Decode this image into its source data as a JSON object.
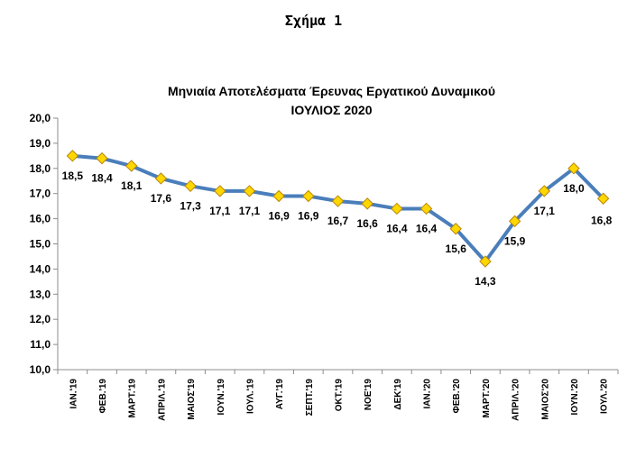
{
  "caption": "Σχήμα 1",
  "chart_data": {
    "type": "line",
    "title": "Μηνιαία Αποτελέσματα Έρευνας Εργατικού Δυναμικού",
    "subtitle": "ΙΟΥΛΙΟΣ 2020",
    "categories": [
      "ΙΑΝ.'19",
      "ΦΕΒ.'19",
      "ΜΑΡΤ.'19",
      "ΑΠΡΙΛ.'19",
      "ΜΑΙΟΣ'19",
      "ΙΟΥΝ.'19",
      "ΙΟΥΛ.'19",
      "ΑΥΓ.'19",
      "ΣΕΠΤ.'19",
      "ΟΚΤ.'19",
      "ΝΟΕ'19",
      "ΔΕΚ'19",
      "ΙΑΝ.'20",
      "ΦΕΒ.'20",
      "ΜΑΡΤ.'20",
      "ΑΠΡΙΛ.'20",
      "ΜΑΙΟΣ'20",
      "ΙΟΥΝ.'20",
      "ΙΟΥΛ.'20"
    ],
    "values": [
      18.5,
      18.4,
      18.1,
      17.6,
      17.3,
      17.1,
      17.1,
      16.9,
      16.9,
      16.7,
      16.6,
      16.4,
      16.4,
      15.6,
      14.3,
      15.9,
      17.1,
      18.0,
      16.8
    ],
    "data_labels": [
      "18,5",
      "18,4",
      "18,1",
      "17,6",
      "17,3",
      "17,1",
      "17,1",
      "16,9",
      "16,9",
      "16,7",
      "16,6",
      "16,4",
      "16,4",
      "15,6",
      "14,3",
      "15,9",
      "17,1",
      "18,0",
      "16,8"
    ],
    "ylim": [
      10,
      20
    ],
    "yticks": [
      "10,0",
      "11,0",
      "12,0",
      "13,0",
      "14,0",
      "15,0",
      "16,0",
      "17,0",
      "18,0",
      "19,0",
      "20,0"
    ],
    "grid": false,
    "legend": "none",
    "line_color": "#4A7EBB",
    "marker_fill": "#FFD700",
    "marker_stroke": "#B8860B"
  }
}
